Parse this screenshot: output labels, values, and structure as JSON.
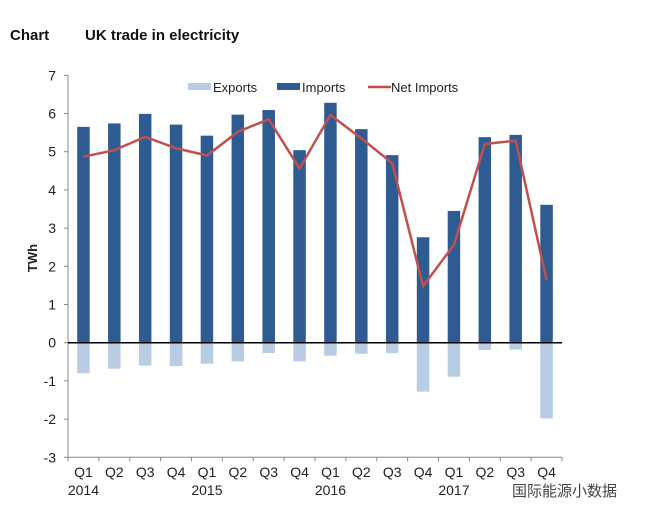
{
  "header": {
    "label": "Chart",
    "title": "UK trade in electricity"
  },
  "watermark": "国际能源小数据",
  "chart_data": {
    "type": "bar",
    "title": "UK trade in electricity",
    "xlabel": "",
    "ylabel": "TWh",
    "ylim": [
      -3,
      7
    ],
    "yticks": [
      -3,
      -2,
      -1,
      0,
      1,
      2,
      3,
      4,
      5,
      6,
      7
    ],
    "grid": false,
    "legend": "top",
    "categories": [
      "Q1",
      "Q2",
      "Q3",
      "Q4",
      "Q1",
      "Q2",
      "Q3",
      "Q4",
      "Q1",
      "Q2",
      "Q3",
      "Q4",
      "Q1",
      "Q2",
      "Q3",
      "Q4"
    ],
    "year_labels": [
      {
        "index": 0,
        "label": "2014"
      },
      {
        "index": 4,
        "label": "2015"
      },
      {
        "index": 8,
        "label": "2016"
      },
      {
        "index": 12,
        "label": "2017"
      }
    ],
    "series": [
      {
        "name": "Exports",
        "type": "bar",
        "color": "#b8cce4",
        "values": [
          -0.8,
          -0.68,
          -0.6,
          -0.61,
          -0.55,
          -0.49,
          -0.27,
          -0.49,
          -0.34,
          -0.29,
          -0.27,
          -1.28,
          -0.89,
          -0.19,
          -0.18,
          -1.98
        ]
      },
      {
        "name": "Imports",
        "type": "bar",
        "color": "#2f5b93",
        "values": [
          5.65,
          5.74,
          5.99,
          5.71,
          5.42,
          5.97,
          6.09,
          5.04,
          6.28,
          5.59,
          4.91,
          2.76,
          3.45,
          5.38,
          5.44,
          3.61
        ]
      },
      {
        "name": "Net Imports",
        "type": "line",
        "color": "#c0504d",
        "values": [
          4.87,
          5.04,
          5.39,
          5.09,
          4.9,
          5.52,
          5.85,
          4.56,
          5.96,
          5.35,
          4.7,
          1.48,
          2.56,
          5.2,
          5.29,
          1.64
        ]
      }
    ]
  }
}
